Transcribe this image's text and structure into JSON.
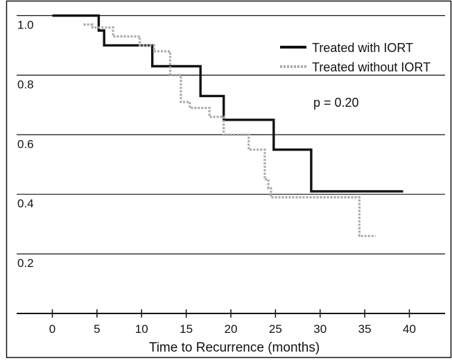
{
  "chart_data": {
    "type": "line",
    "subtype": "kaplan-meier-step",
    "xlabel": "Time to Recurrence (months)",
    "ylabel": "",
    "xlim": [
      -4,
      44
    ],
    "ylim": [
      0,
      1.05
    ],
    "xticks": [
      0,
      5,
      10,
      15,
      20,
      25,
      30,
      35,
      40
    ],
    "yticks": [
      0.2,
      0.4,
      0.6,
      0.8,
      1.0
    ],
    "ytick_labels": [
      "0.2",
      "0.4",
      "0.6",
      "0.8",
      "1.0"
    ],
    "grid": "horizontal",
    "legend_position": "top-right",
    "annotation": "p = 0.20",
    "series": [
      {
        "name": "Treated with IORT",
        "color": "#111111",
        "line_style": "solid",
        "x": [
          0,
          5.2,
          5.2,
          5.8,
          5.8,
          11.2,
          11.2,
          16.6,
          16.6,
          19.2,
          19.2,
          24.8,
          24.8,
          29.0,
          29.0,
          39.3
        ],
        "y": [
          1.0,
          1.0,
          0.95,
          0.95,
          0.9,
          0.9,
          0.83,
          0.83,
          0.73,
          0.73,
          0.65,
          0.65,
          0.55,
          0.55,
          0.41,
          0.41
        ]
      },
      {
        "name": "Treated without IORT",
        "color": "#aaaaaa",
        "line_style": "dotted",
        "x": [
          3.5,
          4.5,
          4.5,
          6.8,
          6.8,
          9.8,
          9.8,
          11.4,
          11.4,
          13.2,
          13.2,
          14.4,
          14.4,
          15.4,
          15.4,
          17.6,
          17.6,
          19.2,
          19.2,
          22.0,
          22.0,
          23.8,
          23.8,
          24.2,
          24.2,
          24.5,
          24.5,
          34.4,
          34.4,
          36.2
        ],
        "y": [
          0.97,
          0.97,
          0.96,
          0.96,
          0.93,
          0.93,
          0.9,
          0.9,
          0.88,
          0.88,
          0.8,
          0.8,
          0.71,
          0.71,
          0.69,
          0.69,
          0.66,
          0.66,
          0.6,
          0.6,
          0.55,
          0.55,
          0.45,
          0.45,
          0.42,
          0.42,
          0.39,
          0.39,
          0.26,
          0.26
        ]
      }
    ]
  }
}
